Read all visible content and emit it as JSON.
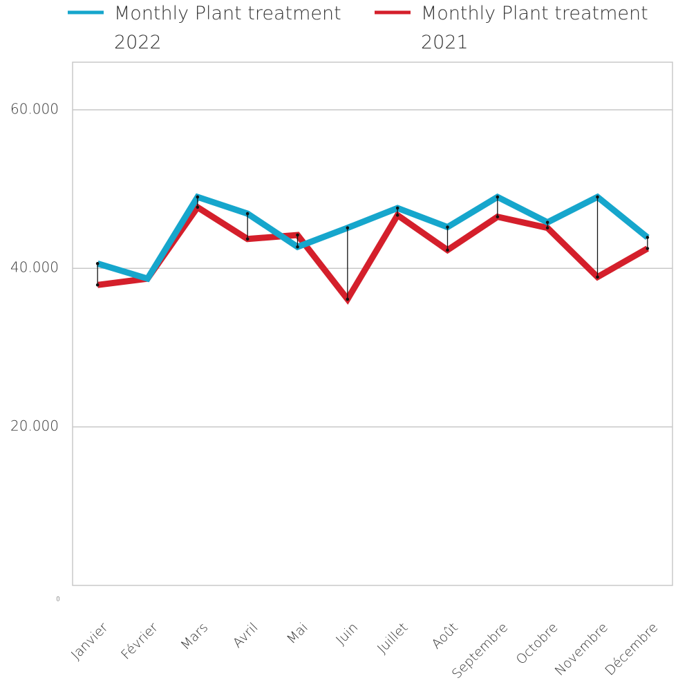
{
  "chart_data": {
    "type": "line",
    "categories": [
      "Janvier",
      "Février",
      "Mars",
      "Avril",
      "Mai",
      "Juin",
      "Juillet",
      "Août",
      "Septembre",
      "Octobre",
      "Novembre",
      "Décembre"
    ],
    "series": [
      {
        "name": "Monthly Plant treatment 2022",
        "color": "#16a6cc",
        "values": [
          40600,
          38700,
          49000,
          46900,
          42700,
          45100,
          47600,
          45200,
          49000,
          45800,
          49000,
          43900
        ]
      },
      {
        "name": "Monthly Plant treatment 2021",
        "color": "#d41f2b",
        "values": [
          37900,
          38700,
          47700,
          43700,
          44200,
          36100,
          46700,
          42300,
          46500,
          45100,
          38900,
          42500
        ]
      }
    ],
    "ylim": [
      0,
      66000
    ],
    "yticks": [
      0,
      {
        "value": 20000,
        "label": "20.000"
      },
      {
        "value": 40000,
        "label": "40.000"
      },
      {
        "value": 60000,
        "label": "60.000"
      }
    ],
    "grid": true,
    "legend": "top"
  }
}
